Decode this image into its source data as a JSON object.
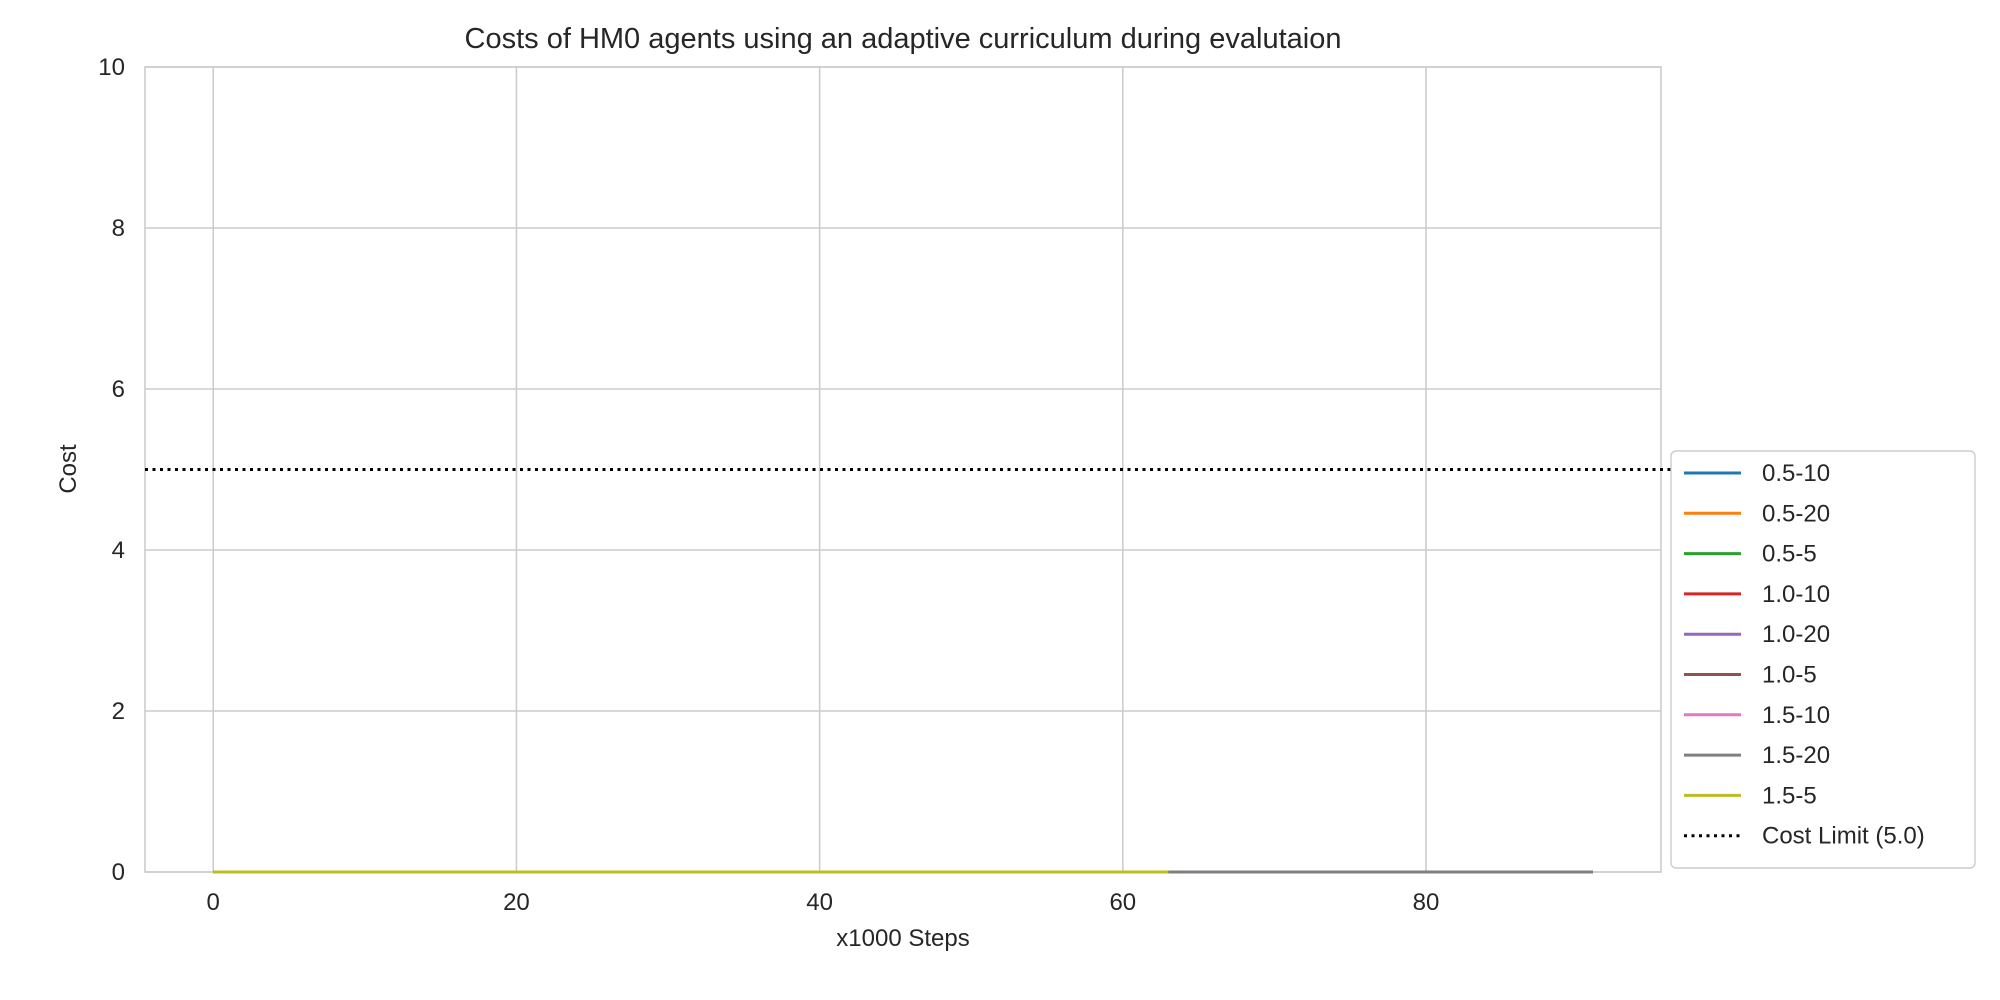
{
  "chart_data": {
    "type": "line",
    "title": "Costs of HM0 agents using an adaptive curriculum during evalutaion",
    "xlabel": "x1000 Steps",
    "ylabel": "Cost",
    "xlim": [
      -4.5,
      95.5
    ],
    "ylim": [
      0,
      10
    ],
    "xticks": [
      0,
      20,
      40,
      60,
      80
    ],
    "yticks": [
      0,
      2,
      4,
      6,
      8,
      10
    ],
    "grid": true,
    "legend_position": "lower-right-outside",
    "series": [
      {
        "name": "0.5-10",
        "color": "#1f77b4",
        "x": [
          0,
          91
        ],
        "y": [
          0,
          0
        ]
      },
      {
        "name": "0.5-20",
        "color": "#ff7f0e",
        "x": [
          0,
          85
        ],
        "y": [
          0,
          0
        ]
      },
      {
        "name": "0.5-5",
        "color": "#2ca02c",
        "x": [
          0,
          88
        ],
        "y": [
          0,
          0
        ]
      },
      {
        "name": "1.0-10",
        "color": "#d62728",
        "x": [
          0,
          91
        ],
        "y": [
          0,
          0
        ]
      },
      {
        "name": "1.0-20",
        "color": "#9467bd",
        "x": [
          0,
          70
        ],
        "y": [
          0,
          0
        ]
      },
      {
        "name": "1.0-5",
        "color": "#8c564b",
        "x": [
          0,
          91
        ],
        "y": [
          0,
          0
        ]
      },
      {
        "name": "1.5-10",
        "color": "#e377c2",
        "x": [
          0,
          80
        ],
        "y": [
          0,
          0
        ]
      },
      {
        "name": "1.5-20",
        "color": "#7f7f7f",
        "x": [
          0,
          91
        ],
        "y": [
          0,
          0
        ]
      },
      {
        "name": "1.5-5",
        "color": "#bcbd22",
        "x": [
          0,
          63
        ],
        "y": [
          0,
          0
        ]
      }
    ],
    "hlines": [
      {
        "name": "Cost Limit (5.0)",
        "y": 5.0,
        "color": "#000000",
        "style": "dotted"
      }
    ]
  }
}
